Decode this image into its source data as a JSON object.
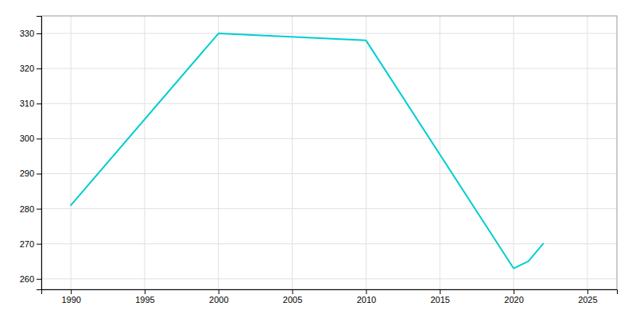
{
  "chart_data": {
    "type": "line",
    "x": [
      1990,
      2000,
      2010,
      2020,
      2021,
      2022
    ],
    "values": [
      281,
      330,
      328,
      263,
      265,
      270
    ],
    "color": "#00CED1",
    "xlim": [
      1988,
      2027
    ],
    "ylim": [
      257,
      335
    ],
    "xticks": [
      1990,
      1995,
      2000,
      2005,
      2010,
      2015,
      2020,
      2025
    ],
    "yticks": [
      260,
      270,
      280,
      290,
      300,
      310,
      320,
      330
    ],
    "grid": true
  }
}
